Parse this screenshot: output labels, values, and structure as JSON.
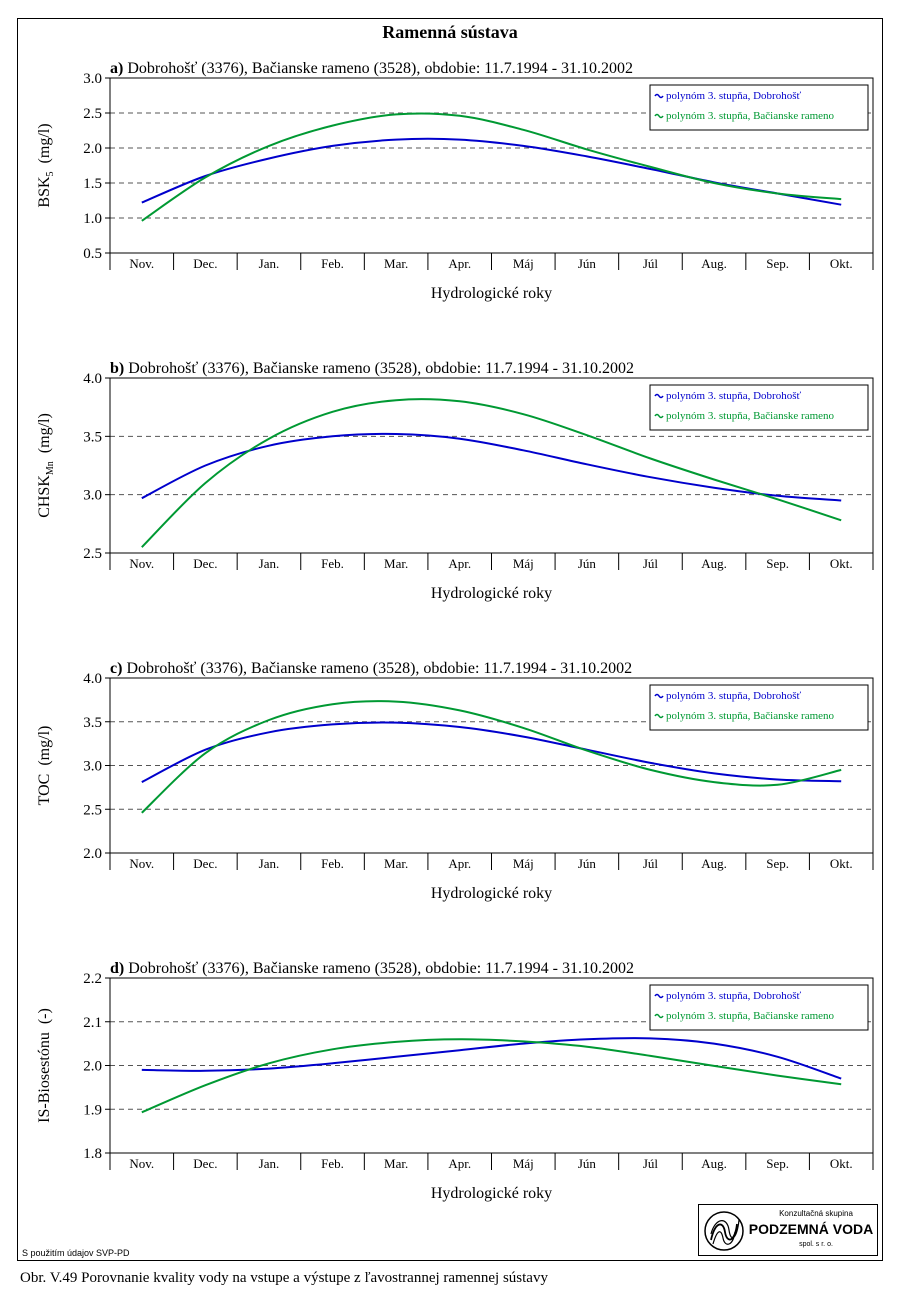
{
  "page_title": "Ramenná sústava",
  "source_note": "S použitím údajov SVP-PD",
  "caption": "Obr. V.49 Porovnanie kvality vody na vstupe a výstupe z ľavostrannej ramennej sústavy",
  "logo": {
    "line1": "Konzultačná skupina",
    "line2": "PODZEMNÁ VODA",
    "line3": "spol. s r. o."
  },
  "colors": {
    "series1": "#0000cc",
    "series2": "#009933",
    "grid": "#555555"
  },
  "chart_data": [
    {
      "type": "line",
      "panel": "a)",
      "title": "Dobrohošť (3376), Bačianske rameno (3528), obdobie: 11.7.1994 - 31.10.2002",
      "ylabel_main": "BSK",
      "ylabel_sub": "5",
      "ylabel_unit": "(mg/l)",
      "xlabel": "Hydrologické roky",
      "categories": [
        "Nov.",
        "Dec.",
        "Jan.",
        "Feb.",
        "Mar.",
        "Apr.",
        "Máj",
        "Jún",
        "Júl",
        "Aug.",
        "Sep.",
        "Okt."
      ],
      "ylim": [
        0.5,
        3.0
      ],
      "yticks": [
        "0.5",
        "1.0",
        "1.5",
        "2.0",
        "2.5",
        "3.0"
      ],
      "gridlines": [
        1.0,
        1.5,
        2.0,
        2.5
      ],
      "series": [
        {
          "name": "polynóm 3. stupňa, Dobrohošť",
          "values": [
            1.22,
            1.6,
            1.85,
            2.03,
            2.12,
            2.12,
            2.03,
            1.88,
            1.7,
            1.51,
            1.35,
            1.19
          ]
        },
        {
          "name": "polynóm 3. stupňa, Bačianske rameno",
          "values": [
            0.96,
            1.58,
            2.03,
            2.32,
            2.48,
            2.46,
            2.26,
            1.98,
            1.73,
            1.5,
            1.35,
            1.27
          ]
        }
      ]
    },
    {
      "type": "line",
      "panel": "b)",
      "title": "Dobrohošť (3376), Bačianske rameno (3528), obdobie: 11.7.1994 - 31.10.2002",
      "ylabel_main": "CHSK",
      "ylabel_sub": "Mn",
      "ylabel_unit": "(mg/l)",
      "xlabel": "Hydrologické roky",
      "categories": [
        "Nov.",
        "Dec.",
        "Jan.",
        "Feb.",
        "Mar.",
        "Apr.",
        "Máj",
        "Jún",
        "Júl",
        "Aug.",
        "Sep.",
        "Okt."
      ],
      "ylim": [
        2.5,
        4.0
      ],
      "yticks": [
        "2.5",
        "3.0",
        "3.5",
        "4.0"
      ],
      "gridlines": [
        3.0,
        3.5
      ],
      "series": [
        {
          "name": "polynóm 3. stupňa, Dobrohošť",
          "values": [
            2.97,
            3.25,
            3.42,
            3.5,
            3.52,
            3.48,
            3.38,
            3.26,
            3.15,
            3.06,
            2.99,
            2.95
          ]
        },
        {
          "name": "polynóm 3. stupňa, Bačianske rameno",
          "values": [
            2.55,
            3.1,
            3.48,
            3.71,
            3.81,
            3.8,
            3.69,
            3.51,
            3.31,
            3.13,
            2.96,
            2.78
          ]
        }
      ]
    },
    {
      "type": "line",
      "panel": "c)",
      "title": "Dobrohošť (3376), Bačianske rameno (3528), obdobie: 11.7.1994 - 31.10.2002",
      "ylabel_main": "TOC",
      "ylabel_sub": "",
      "ylabel_unit": "(mg/l)",
      "xlabel": "Hydrologické roky",
      "categories": [
        "Nov.",
        "Dec.",
        "Jan.",
        "Feb.",
        "Mar.",
        "Apr.",
        "Máj",
        "Jún",
        "Júl",
        "Aug.",
        "Sep.",
        "Okt."
      ],
      "ylim": [
        2.0,
        4.0
      ],
      "yticks": [
        "2.0",
        "2.5",
        "3.0",
        "3.5",
        "4.0"
      ],
      "gridlines": [
        2.5,
        3.0,
        3.5
      ],
      "series": [
        {
          "name": "polynóm 3. stupňa, Dobrohošť",
          "values": [
            2.81,
            3.18,
            3.38,
            3.47,
            3.49,
            3.44,
            3.33,
            3.18,
            3.03,
            2.91,
            2.84,
            2.82
          ]
        },
        {
          "name": "polynóm 3. stupňa, Bačianske rameno",
          "values": [
            2.46,
            3.14,
            3.52,
            3.7,
            3.73,
            3.63,
            3.43,
            3.17,
            2.95,
            2.81,
            2.78,
            2.95
          ]
        }
      ]
    },
    {
      "type": "line",
      "panel": "d)",
      "title": "Dobrohošť (3376), Bačianske rameno (3528), obdobie: 11.7.1994 - 31.10.2002",
      "ylabel_main": "IS-Biosestónu",
      "ylabel_sub": "",
      "ylabel_unit": "(-)",
      "xlabel": "Hydrologické roky",
      "categories": [
        "Nov.",
        "Dec.",
        "Jan.",
        "Feb.",
        "Mar.",
        "Apr.",
        "Máj",
        "Jún",
        "Júl",
        "Aug.",
        "Sep.",
        "Okt."
      ],
      "ylim": [
        1.8,
        2.2
      ],
      "yticks": [
        "1.8",
        "1.9",
        "2.0",
        "2.1",
        "2.2"
      ],
      "gridlines": [
        1.9,
        2.0,
        2.1
      ],
      "series": [
        {
          "name": "polynóm 3. stupňa, Dobrohošť",
          "values": [
            1.99,
            1.988,
            1.993,
            2.005,
            2.02,
            2.035,
            2.05,
            2.06,
            2.062,
            2.05,
            2.02,
            1.97
          ]
        },
        {
          "name": "polynóm 3. stupňa, Bačianske rameno",
          "values": [
            1.893,
            1.955,
            2.005,
            2.037,
            2.054,
            2.06,
            2.055,
            2.043,
            2.022,
            1.999,
            1.977,
            1.957
          ]
        }
      ]
    }
  ]
}
